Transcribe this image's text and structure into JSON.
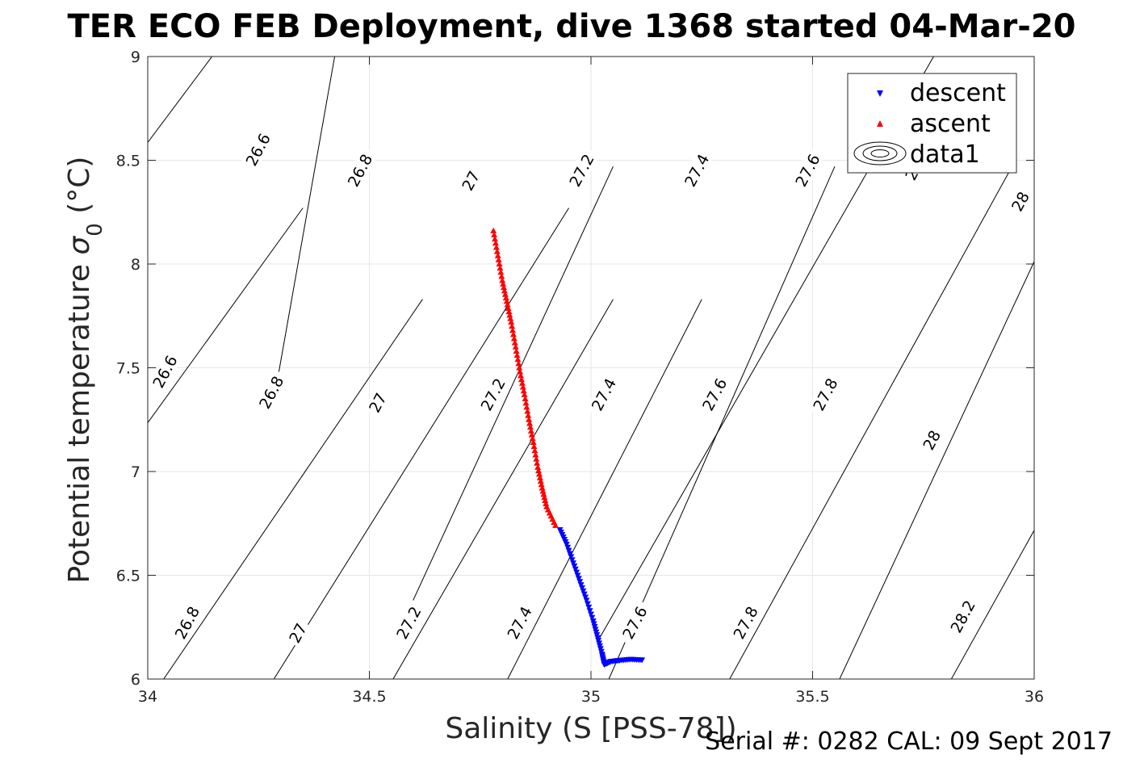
{
  "chart_data": {
    "type": "scatter",
    "title": "TER ECO FEB Deployment, dive 1368 started 04-Mar-20",
    "xlabel": "Salinity (S [PSS-78])",
    "ylabel_main": "Potential temperature ",
    "ylabel_sigma": "σ",
    "ylabel_sub": "0",
    "ylabel_unit": " (°C)",
    "xlim": [
      34,
      36
    ],
    "ylim": [
      6,
      9
    ],
    "xticks": [
      34,
      34.5,
      35,
      35.5,
      36
    ],
    "yticks": [
      6,
      6.5,
      7,
      7.5,
      8,
      8.5,
      9
    ],
    "xtick_labels": [
      "34",
      "34.5",
      "35",
      "35.5",
      "36"
    ],
    "ytick_labels": [
      "6",
      "6.5",
      "7",
      "7.5",
      "8",
      "8.5",
      "9"
    ],
    "grid": true,
    "legend_position": "top-right",
    "legend": [
      "descent",
      "ascent",
      "data1"
    ],
    "series": [
      {
        "name": "descent",
        "marker": "triangle-down",
        "color": "#0000ff",
        "points": [
          [
            34.93,
            6.72
          ],
          [
            34.945,
            6.65
          ],
          [
            34.96,
            6.56
          ],
          [
            34.975,
            6.47
          ],
          [
            34.99,
            6.38
          ],
          [
            35.005,
            6.28
          ],
          [
            35.015,
            6.2
          ],
          [
            35.025,
            6.12
          ],
          [
            35.03,
            6.07
          ],
          [
            35.045,
            6.085
          ],
          [
            35.065,
            6.09
          ],
          [
            35.09,
            6.095
          ],
          [
            35.115,
            6.092
          ]
        ]
      },
      {
        "name": "ascent",
        "marker": "triangle-up",
        "color": "#ff0000",
        "points": [
          [
            34.78,
            8.16
          ],
          [
            34.79,
            8.04
          ],
          [
            34.8,
            7.92
          ],
          [
            34.81,
            7.82
          ],
          [
            34.82,
            7.72
          ],
          [
            34.83,
            7.6
          ],
          [
            34.84,
            7.48
          ],
          [
            34.85,
            7.37
          ],
          [
            34.86,
            7.25
          ],
          [
            34.87,
            7.14
          ],
          [
            34.88,
            7.02
          ],
          [
            34.89,
            6.92
          ],
          [
            34.9,
            6.83
          ],
          [
            34.92,
            6.74
          ]
        ]
      }
    ],
    "contour_lines": [
      {
        "label": "26.6",
        "points": [
          [
            33.9,
            8.3
          ],
          [
            34.18,
            9.1
          ]
        ]
      },
      {
        "label": "26.6",
        "points": [
          [
            33.88,
            6.88
          ],
          [
            34.35,
            8.27
          ]
        ]
      },
      {
        "label": "26.8",
        "points": [
          [
            34.02,
            5.95
          ],
          [
            34.62,
            7.83
          ]
        ]
      },
      {
        "label": "26.8",
        "points": [
          [
            34.29,
            7.41
          ],
          [
            34.43,
            9.1
          ]
        ]
      },
      {
        "label": "27",
        "points": [
          [
            34.27,
            5.95
          ],
          [
            34.95,
            8.27
          ]
        ]
      },
      {
        "label": "27.2",
        "points": [
          [
            34.54,
            5.95
          ],
          [
            35.05,
            7.83
          ]
        ]
      },
      {
        "label": "27.2",
        "points": [
          [
            34.56,
            6.2
          ],
          [
            35.05,
            8.47
          ]
        ]
      },
      {
        "label": "27.4",
        "points": [
          [
            34.8,
            5.95
          ],
          [
            35.25,
            7.83
          ]
        ]
      },
      {
        "label": "27.6",
        "points": [
          [
            35.03,
            5.95
          ],
          [
            35.55,
            8.47
          ]
        ]
      },
      {
        "label": "27.6",
        "points": [
          [
            35.02,
            6.2
          ],
          [
            35.8,
            9.1
          ]
        ]
      },
      {
        "label": "27.8",
        "points": [
          [
            35.3,
            5.95
          ],
          [
            35.95,
            8.47
          ]
        ]
      },
      {
        "label": "28",
        "points": [
          [
            35.55,
            5.95
          ],
          [
            36.1,
            8.47
          ]
        ]
      },
      {
        "label": "28.2",
        "points": [
          [
            35.8,
            5.95
          ],
          [
            36.1,
            7.1
          ]
        ]
      }
    ],
    "contour_labels": [
      {
        "text": "26.6",
        "x": 34.25,
        "y": 8.55
      },
      {
        "text": "26.8",
        "x": 34.48,
        "y": 8.45
      },
      {
        "text": "27",
        "x": 34.73,
        "y": 8.4
      },
      {
        "text": "27.2",
        "x": 34.98,
        "y": 8.45
      },
      {
        "text": "27.4",
        "x": 35.24,
        "y": 8.45
      },
      {
        "text": "27.6",
        "x": 35.49,
        "y": 8.45
      },
      {
        "text": "27",
        "x": 35.73,
        "y": 8.45
      },
      {
        "text": "28",
        "x": 35.97,
        "y": 8.3
      },
      {
        "text": "26.6",
        "x": 34.04,
        "y": 7.48
      },
      {
        "text": "26.8",
        "x": 34.28,
        "y": 7.38
      },
      {
        "text": "27",
        "x": 34.52,
        "y": 7.33
      },
      {
        "text": "27.2",
        "x": 34.78,
        "y": 7.37
      },
      {
        "text": "27.4",
        "x": 35.03,
        "y": 7.37
      },
      {
        "text": "27.6",
        "x": 35.28,
        "y": 7.37
      },
      {
        "text": "27.8",
        "x": 35.53,
        "y": 7.37
      },
      {
        "text": "28",
        "x": 35.77,
        "y": 7.15
      },
      {
        "text": "26.8",
        "x": 34.09,
        "y": 6.27
      },
      {
        "text": "27",
        "x": 34.34,
        "y": 6.22
      },
      {
        "text": "27.2",
        "x": 34.59,
        "y": 6.27
      },
      {
        "text": "27.4",
        "x": 34.84,
        "y": 6.27
      },
      {
        "text": "27.6",
        "x": 35.1,
        "y": 6.27
      },
      {
        "text": "27.8",
        "x": 35.35,
        "y": 6.27
      },
      {
        "text": "28.2",
        "x": 35.84,
        "y": 6.3
      }
    ]
  },
  "footer": "Serial #: 0282  CAL: 09 Sept 2017"
}
